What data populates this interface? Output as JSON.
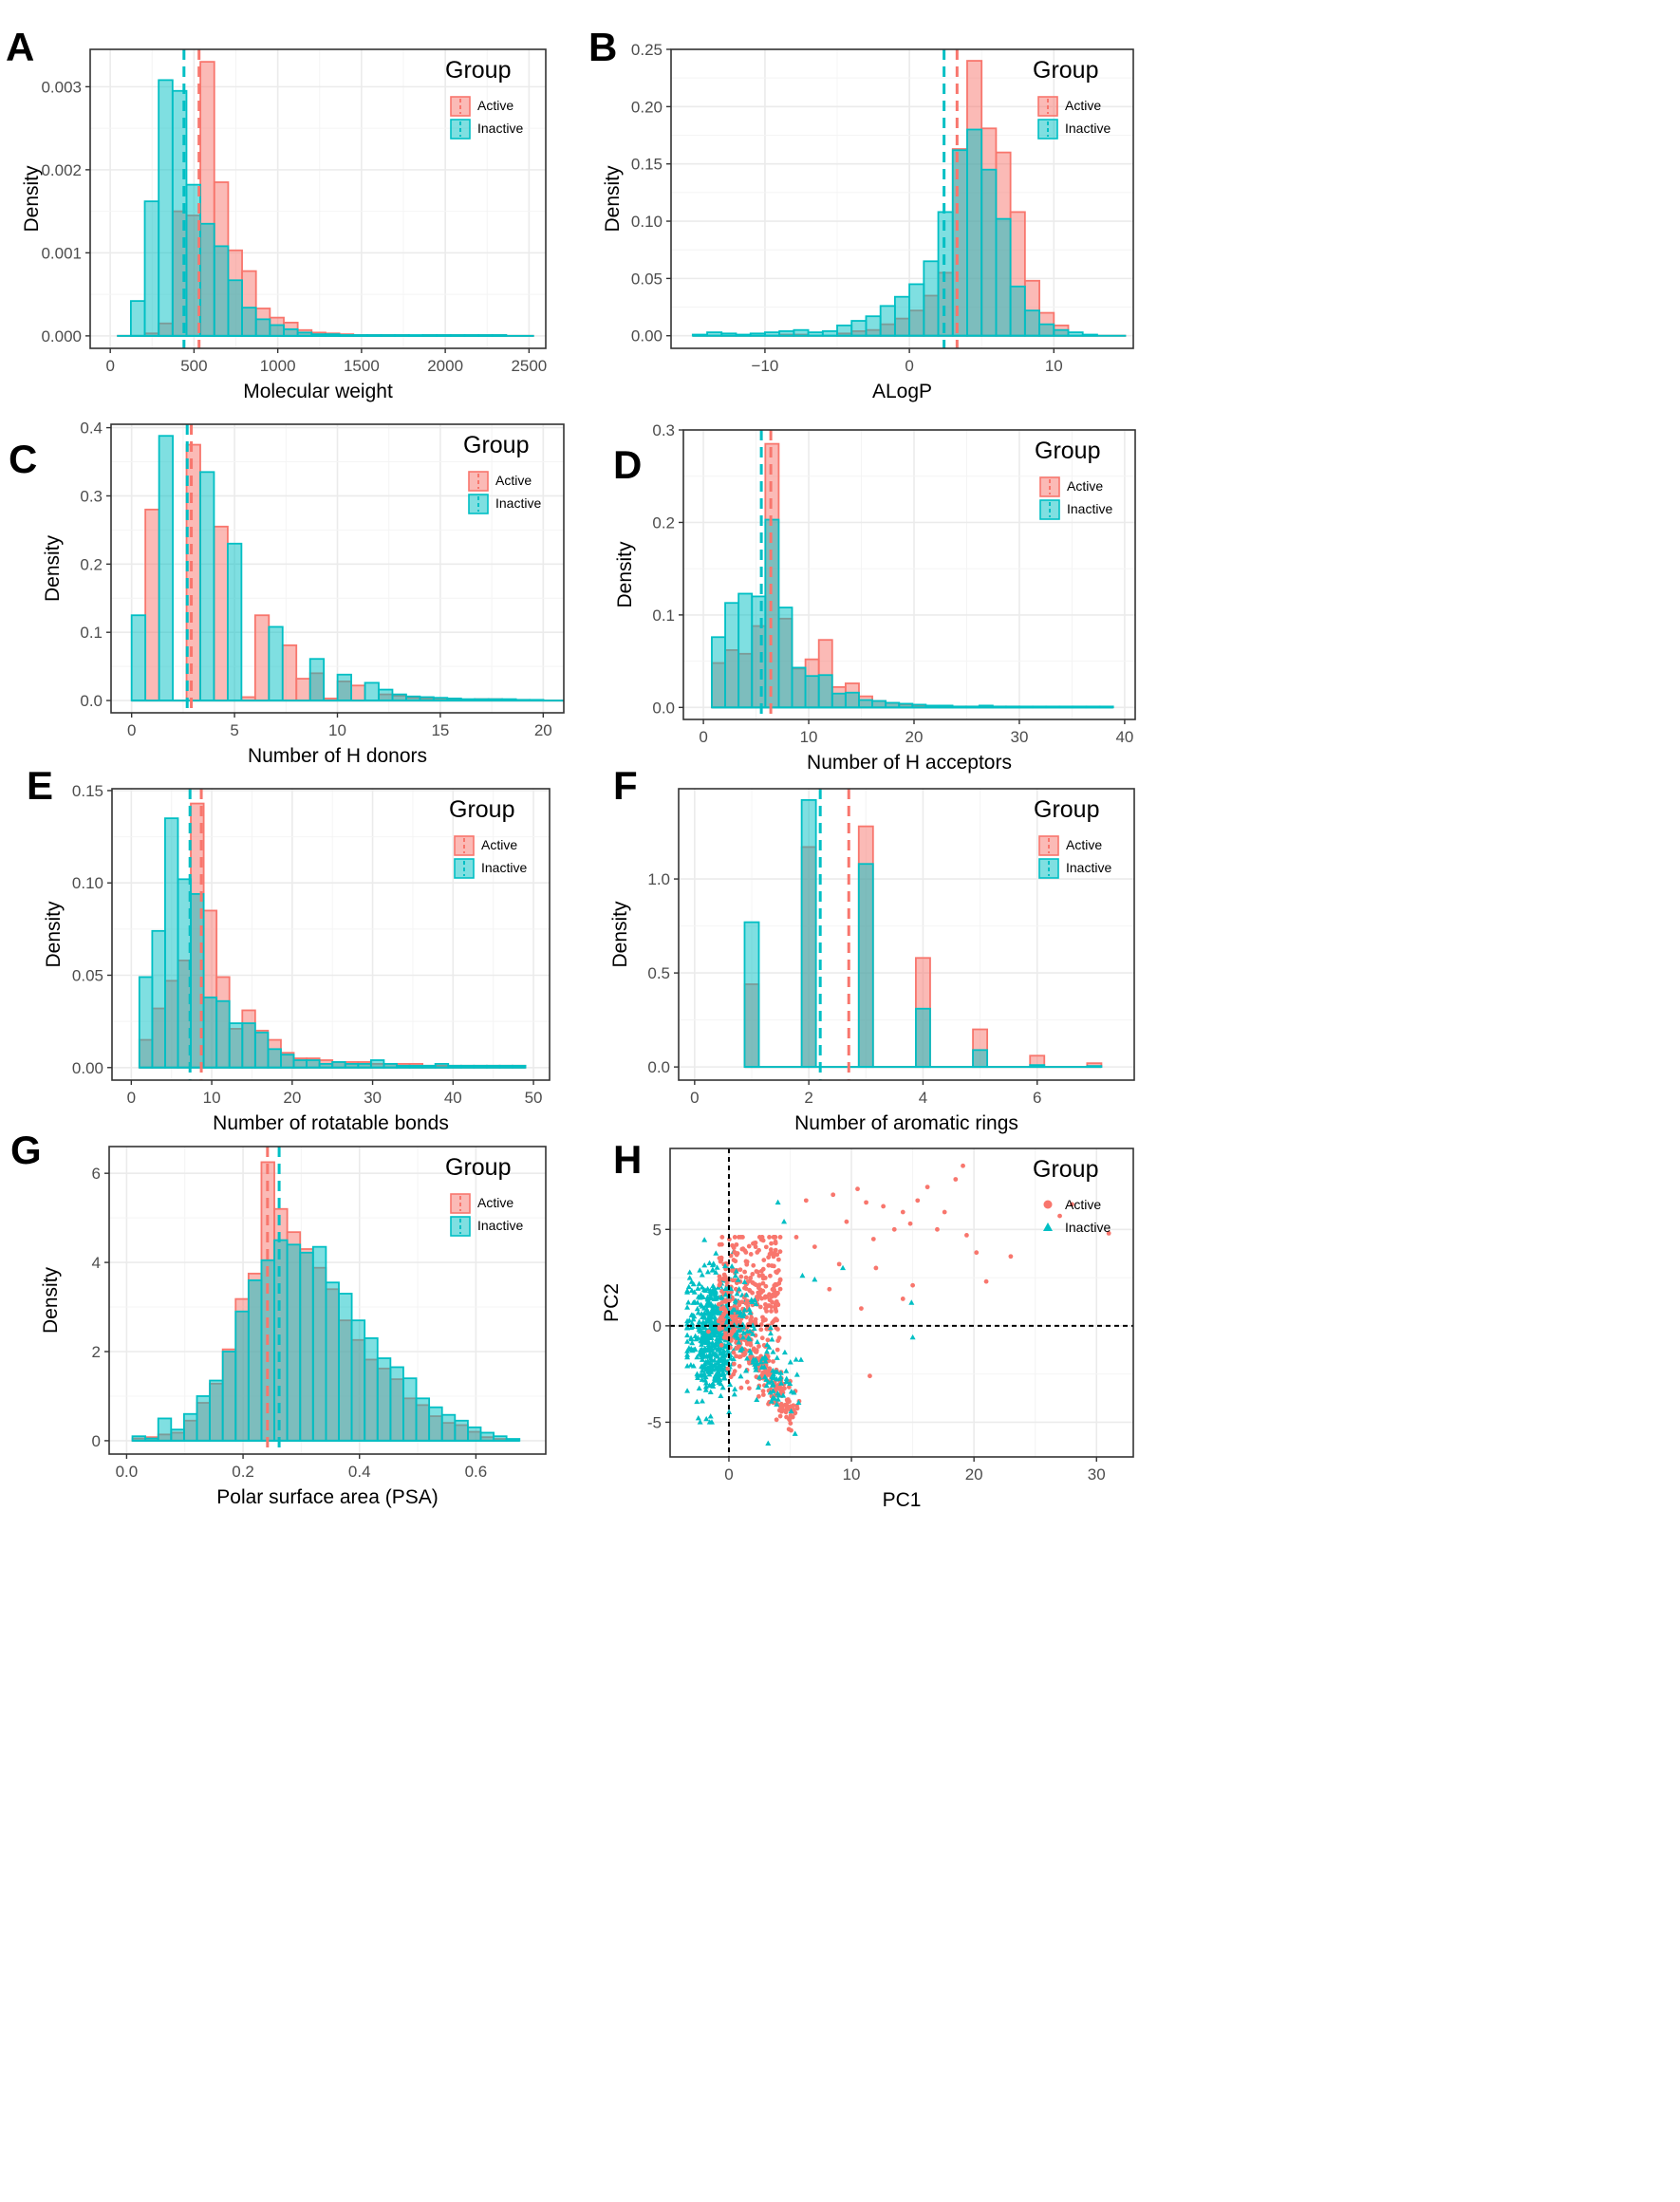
{
  "chart_data": [
    {
      "panel": "A",
      "type": "histogram",
      "xlabel": "Molecular weight",
      "ylabel": "Density",
      "xlim": [
        -120,
        2600
      ],
      "ylim": [
        -0.00015,
        0.00345
      ],
      "xticks": [
        0,
        500,
        1000,
        1500,
        2000,
        2500
      ],
      "xtick_labels": [
        "0",
        "500",
        "1000",
        "1500",
        "2000",
        "2500"
      ],
      "yticks": [
        0,
        0.001,
        0.002,
        0.003
      ],
      "ytick_labels": [
        "0.000",
        "0.001",
        "0.002",
        "0.003"
      ],
      "legend": {
        "title": "Group",
        "position": "top-right"
      },
      "series": [
        {
          "name": "Active",
          "color": "#F8766D",
          "bin_width": 83,
          "bins_start": 40,
          "values": [
            0,
            0,
            3e-05,
            0.00015,
            0.0015,
            0.00145,
            0.0033,
            0.00185,
            0.00103,
            0.00078,
            0.00033,
            0.00022,
            0.00016,
            7e-05,
            4e-05,
            3e-05,
            2e-05,
            1e-05,
            1e-05,
            1e-05,
            1e-05,
            0,
            1e-05,
            1e-05,
            1e-05,
            1e-05,
            1e-05,
            1e-05,
            0,
            0
          ],
          "mean_line": 530
        },
        {
          "name": "Inactive",
          "color": "#00BFC4",
          "bin_width": 83,
          "bins_start": 40,
          "values": [
            0,
            0.00042,
            0.00162,
            0.00308,
            0.00295,
            0.00182,
            0.00135,
            0.00108,
            0.00067,
            0.00034,
            0.0002,
            0.00013,
            8e-05,
            4e-05,
            2e-05,
            2e-05,
            1e-05,
            1e-05,
            1e-05,
            1e-05,
            1e-05,
            1e-05,
            1e-05,
            1e-05,
            1e-05,
            1e-05,
            1e-05,
            1e-05,
            0,
            0
          ],
          "mean_line": 440
        }
      ]
    },
    {
      "panel": "B",
      "type": "histogram",
      "xlabel": "ALogP",
      "ylabel": "Density",
      "xlim": [
        -16.5,
        15.5
      ],
      "ylim": [
        -0.011,
        0.25
      ],
      "xticks": [
        -10,
        0,
        10
      ],
      "xtick_labels": [
        "−10",
        "0",
        "10"
      ],
      "yticks": [
        0,
        0.05,
        0.1,
        0.15,
        0.2,
        0.25
      ],
      "ytick_labels": [
        "0.00",
        "0.05",
        "0.10",
        "0.15",
        "0.20",
        "0.25"
      ],
      "legend": {
        "title": "Group",
        "position": "top-right"
      },
      "series": [
        {
          "name": "Active",
          "color": "#F8766D",
          "bin_width": 1.0,
          "bins_start": -15,
          "values": [
            0,
            0,
            0,
            0,
            0,
            0,
            0.001,
            0.001,
            0,
            0,
            0.002,
            0.004,
            0.005,
            0.01,
            0.015,
            0.022,
            0.035,
            0.055,
            0.163,
            0.24,
            0.181,
            0.16,
            0.108,
            0.048,
            0.02,
            0.009,
            0,
            0,
            0,
            0
          ],
          "mean_line": 3.3
        },
        {
          "name": "Inactive",
          "color": "#00BFC4",
          "bin_width": 1.0,
          "bins_start": -15,
          "values": [
            0.001,
            0.003,
            0.002,
            0.001,
            0.002,
            0.003,
            0.004,
            0.005,
            0.003,
            0.004,
            0.009,
            0.013,
            0.017,
            0.026,
            0.034,
            0.045,
            0.065,
            0.108,
            0.162,
            0.18,
            0.145,
            0.102,
            0.043,
            0.022,
            0.01,
            0.005,
            0.003,
            0.001,
            0,
            0
          ],
          "mean_line": 2.4
        }
      ]
    },
    {
      "panel": "C",
      "type": "histogram",
      "xlabel": "Number of H donors",
      "ylabel": "Density",
      "xlim": [
        -1.0,
        21.0
      ],
      "ylim": [
        -0.018,
        0.405
      ],
      "xticks": [
        0,
        5,
        10,
        15,
        20
      ],
      "xtick_labels": [
        "0",
        "5",
        "10",
        "15",
        "20"
      ],
      "yticks": [
        0,
        0.1,
        0.2,
        0.3,
        0.4
      ],
      "ytick_labels": [
        "0.0",
        "0.1",
        "0.2",
        "0.3",
        "0.4"
      ],
      "legend": {
        "title": "Group",
        "position": "top-right"
      },
      "series": [
        {
          "name": "Active",
          "color": "#F8766D",
          "bin_width": 0.667,
          "bins_start": 0,
          "values": [
            0,
            0.28,
            0,
            0,
            0.375,
            0,
            0.255,
            0,
            0.005,
            0.125,
            0,
            0.081,
            0.032,
            0.04,
            0.003,
            0.028,
            0.022,
            0,
            0.009,
            0.007,
            0.004,
            0.003,
            0.003,
            0.002,
            0,
            0.002,
            0.002,
            0,
            0.001,
            0,
            0,
            0,
            0,
            0,
            0,
            0,
            0.001,
            0,
            0.001,
            0,
            0,
            0,
            0,
            0,
            0,
            0,
            0,
            0,
            0,
            0.001
          ],
          "mean_line": 2.9
        },
        {
          "name": "Inactive",
          "color": "#00BFC4",
          "bin_width": 0.667,
          "bins_start": 0,
          "values": [
            0.125,
            0,
            0.388,
            0,
            0,
            0.335,
            0,
            0.23,
            0,
            0,
            0.108,
            0,
            0,
            0.061,
            0,
            0.038,
            0,
            0.026,
            0.016,
            0.009,
            0.006,
            0.005,
            0.004,
            0.003,
            0.002,
            0.002,
            0.002,
            0.002,
            0.001,
            0.001,
            0,
            0,
            0,
            0,
            0,
            0,
            0,
            0,
            0,
            0,
            0,
            0,
            0,
            0,
            0,
            0,
            0,
            0,
            0,
            0
          ],
          "mean_line": 2.7
        }
      ]
    },
    {
      "panel": "D",
      "type": "histogram",
      "xlabel": "Number of H acceptors",
      "ylabel": "Density",
      "xlim": [
        -1.9,
        41.0
      ],
      "ylim": [
        -0.013,
        0.3
      ],
      "xticks": [
        0,
        10,
        20,
        30,
        40
      ],
      "xtick_labels": [
        "0",
        "10",
        "20",
        "30",
        "40"
      ],
      "yticks": [
        0,
        0.1,
        0.2,
        0.3
      ],
      "ytick_labels": [
        "0.0",
        "0.1",
        "0.2",
        "0.3"
      ],
      "legend": {
        "title": "Group",
        "position": "top-right"
      },
      "series": [
        {
          "name": "Active",
          "color": "#F8766D",
          "bin_width": 1.27,
          "bins_start": 0.8,
          "values": [
            0.048,
            0.062,
            0.058,
            0.088,
            0.285,
            0.096,
            0.042,
            0.052,
            0.073,
            0.022,
            0.026,
            0.012,
            0.007,
            0.005,
            0.003,
            0.002,
            0.001,
            0.001,
            0.001,
            0.001,
            0.001,
            0.001,
            0.001,
            0,
            0,
            0,
            0,
            0,
            0,
            0
          ],
          "mean_line": 6.4
        },
        {
          "name": "Inactive",
          "color": "#00BFC4",
          "bin_width": 1.27,
          "bins_start": 0.8,
          "values": [
            0.076,
            0.113,
            0.123,
            0.12,
            0.203,
            0.108,
            0.043,
            0.034,
            0.035,
            0.015,
            0.016,
            0.008,
            0.007,
            0.005,
            0.004,
            0.003,
            0.002,
            0.002,
            0.001,
            0.001,
            0.002,
            0.001,
            0.001,
            0.001,
            0.001,
            0.001,
            0.001,
            0.001,
            0.001,
            0.001
          ],
          "mean_line": 5.5
        }
      ]
    },
    {
      "panel": "E",
      "type": "histogram",
      "xlabel": "Number of rotatable bonds",
      "ylabel": "Density",
      "xlim": [
        -2.4,
        52.0
      ],
      "ylim": [
        -0.0068,
        0.151
      ],
      "xticks": [
        0,
        10,
        20,
        30,
        40,
        50
      ],
      "xtick_labels": [
        "0",
        "10",
        "20",
        "30",
        "40",
        "50"
      ],
      "yticks": [
        0,
        0.05,
        0.1,
        0.15
      ],
      "ytick_labels": [
        "0.00",
        "0.05",
        "0.10",
        "0.15"
      ],
      "legend": {
        "title": "Group",
        "position": "top-right"
      },
      "series": [
        {
          "name": "Active",
          "color": "#F8766D",
          "bin_width": 1.6,
          "bins_start": 1,
          "values": [
            0.015,
            0.032,
            0.047,
            0.058,
            0.143,
            0.085,
            0.049,
            0.021,
            0.031,
            0.02,
            0.015,
            0.008,
            0.005,
            0.005,
            0.004,
            0.003,
            0.003,
            0.003,
            0.002,
            0.002,
            0.002,
            0.002,
            0.001,
            0.001,
            0.001,
            0.001,
            0.001,
            0.001,
            0.001,
            0.001
          ],
          "mean_line": 8.7
        },
        {
          "name": "Inactive",
          "color": "#00BFC4",
          "bin_width": 1.6,
          "bins_start": 1,
          "values": [
            0.049,
            0.074,
            0.135,
            0.102,
            0.094,
            0.038,
            0.036,
            0.024,
            0.024,
            0.019,
            0.01,
            0.007,
            0.004,
            0.004,
            0.002,
            0.003,
            0.002,
            0.002,
            0.004,
            0.002,
            0.001,
            0.001,
            0.001,
            0.002,
            0.001,
            0.001,
            0.001,
            0.001,
            0.001,
            0.001
          ],
          "mean_line": 7.3
        }
      ]
    },
    {
      "panel": "F",
      "type": "histogram",
      "xlabel": "Number of aromatic rings",
      "ylabel": "Density",
      "xlim": [
        -0.28,
        7.7
      ],
      "ylim": [
        -0.07,
        1.48
      ],
      "xticks": [
        0,
        2,
        4,
        6
      ],
      "xtick_labels": [
        "0",
        "2",
        "4",
        "6"
      ],
      "yticks": [
        0,
        0.5,
        1.0
      ],
      "ytick_labels": [
        "0.0",
        "0.5",
        "1.0"
      ],
      "legend": {
        "title": "Group",
        "position": "top-right"
      },
      "series": [
        {
          "name": "Active",
          "color": "#F8766D",
          "bin_width": 0.25,
          "bins": [
            1,
            2,
            3,
            4,
            5,
            6,
            7
          ],
          "values": [
            0.44,
            1.17,
            1.28,
            0.58,
            0.2,
            0.06,
            0.02
          ],
          "mean_line": 2.7
        },
        {
          "name": "Inactive",
          "color": "#00BFC4",
          "bin_width": 0.25,
          "bins": [
            1,
            2,
            3,
            4,
            5,
            6,
            7
          ],
          "values": [
            0.77,
            1.42,
            1.08,
            0.31,
            0.09,
            0.01,
            0.005
          ],
          "mean_line": 2.2
        }
      ]
    },
    {
      "panel": "G",
      "type": "histogram",
      "xlabel": "Polar surface area (PSA)",
      "ylabel": "Density",
      "xlim": [
        -0.03,
        0.72
      ],
      "ylim": [
        -0.3,
        6.6
      ],
      "xticks": [
        0.0,
        0.2,
        0.4,
        0.6
      ],
      "xtick_labels": [
        "0.0",
        "0.2",
        "0.4",
        "0.6"
      ],
      "yticks": [
        0,
        2,
        4,
        6
      ],
      "ytick_labels": [
        "0",
        "2",
        "4",
        "6"
      ],
      "legend": {
        "title": "Group",
        "position": "top-right"
      },
      "series": [
        {
          "name": "Active",
          "color": "#F8766D",
          "bin_width": 0.02216,
          "bins_start": 0.01,
          "values": [
            0.05,
            0.08,
            0.14,
            0.18,
            0.45,
            0.85,
            1.28,
            2.05,
            3.18,
            3.75,
            6.25,
            5.2,
            4.68,
            4.3,
            3.88,
            3.4,
            2.7,
            2.26,
            1.82,
            1.62,
            1.38,
            0.95,
            0.8,
            0.55,
            0.4,
            0.35,
            0.2,
            0.08,
            0.04,
            0
          ],
          "mean_line": 0.242
        },
        {
          "name": "Inactive",
          "color": "#00BFC4",
          "bin_width": 0.02216,
          "bins_start": 0.01,
          "values": [
            0.1,
            0.05,
            0.5,
            0.25,
            0.6,
            1.0,
            1.35,
            2.0,
            2.9,
            3.6,
            4.05,
            4.5,
            4.4,
            4.22,
            4.35,
            3.55,
            3.3,
            2.7,
            2.3,
            1.85,
            1.65,
            1.4,
            0.95,
            0.75,
            0.58,
            0.45,
            0.3,
            0.18,
            0.1,
            0.04
          ],
          "mean_line": 0.262
        }
      ]
    },
    {
      "panel": "H",
      "type": "scatter",
      "xlabel": "PC1",
      "ylabel": "PC2",
      "xlim": [
        -4.8,
        33.0
      ],
      "ylim": [
        -6.8,
        9.2
      ],
      "xticks": [
        0,
        10,
        20,
        30
      ],
      "xtick_labels": [
        "0",
        "10",
        "20",
        "30"
      ],
      "yticks": [
        -5,
        0,
        5
      ],
      "ytick_labels": [
        "-5",
        "0",
        "5"
      ],
      "reference_lines": {
        "x": 0,
        "y": 0
      },
      "legend": {
        "title": "Group",
        "position": "top-right"
      },
      "series": [
        {
          "name": "Active",
          "color": "#F8766D",
          "marker": "circle",
          "outliers": [
            [
              8.5,
              6.8
            ],
            [
              9.6,
              5.4
            ],
            [
              10.5,
              7.1
            ],
            [
              11.2,
              6.4
            ],
            [
              11.8,
              4.5
            ],
            [
              12.6,
              6.2
            ],
            [
              13.5,
              5.0
            ],
            [
              14.2,
              5.9
            ],
            [
              14.8,
              5.3
            ],
            [
              15.4,
              6.5
            ],
            [
              16.2,
              7.2
            ],
            [
              17.0,
              5.0
            ],
            [
              17.6,
              5.9
            ],
            [
              18.5,
              7.6
            ],
            [
              19.1,
              8.3
            ],
            [
              19.4,
              4.7
            ],
            [
              20.2,
              3.8
            ],
            [
              21.0,
              2.3
            ],
            [
              23.0,
              3.6
            ],
            [
              27.0,
              5.7
            ],
            [
              28.0,
              6.3
            ],
            [
              31.0,
              4.8
            ],
            [
              15.0,
              2.1
            ],
            [
              14.2,
              1.4
            ],
            [
              11.5,
              -2.6
            ],
            [
              6.3,
              6.5
            ],
            [
              5.5,
              4.6
            ],
            [
              7.0,
              4.1
            ],
            [
              8.2,
              1.9
            ],
            [
              9.0,
              3.2
            ],
            [
              12.0,
              3.0
            ],
            [
              10.8,
              0.9
            ]
          ]
        },
        {
          "name": "Inactive",
          "color": "#00BFC4",
          "marker": "triangle",
          "outliers": [
            [
              4.0,
              6.4
            ],
            [
              14.9,
              1.2
            ],
            [
              15.0,
              -0.6
            ],
            [
              4.5,
              5.4
            ],
            [
              6.0,
              2.6
            ],
            [
              3.2,
              -6.1
            ],
            [
              5.4,
              -5.6
            ],
            [
              2.4,
              -3.2
            ],
            [
              7.0,
              2.4
            ],
            [
              9.3,
              3.0
            ]
          ]
        }
      ]
    }
  ],
  "panel_labels": [
    "A",
    "B",
    "C",
    "D",
    "E",
    "F",
    "G",
    "H"
  ],
  "legend": {
    "title": "Group",
    "active_label": "Active",
    "inactive_label": "Inactive"
  },
  "colors": {
    "active": "#F8766D",
    "inactive": "#00BFC4",
    "overlap": "#309C9E"
  }
}
